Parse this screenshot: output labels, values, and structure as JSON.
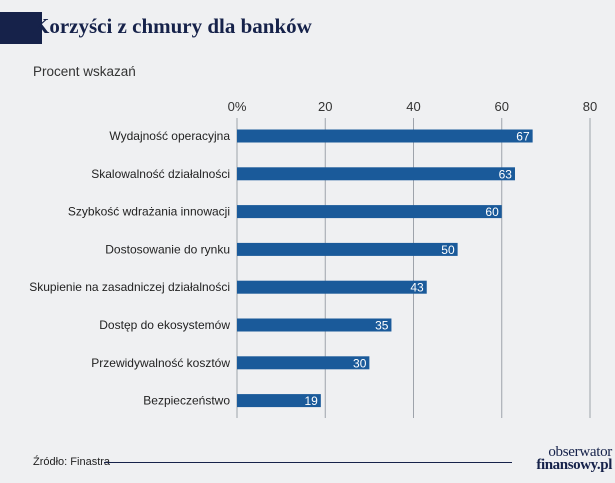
{
  "header": {
    "title": "Korzyści z chmury dla banków",
    "subtitle": "Procent wskazań"
  },
  "footer": {
    "source": "Źródło: Finastra",
    "logo_line1": "obserwator",
    "logo_line2": "finansowy.pl"
  },
  "colors": {
    "bar": "#1a5a9a",
    "accent": "#16224a",
    "background": "#eff0f2"
  },
  "chart_data": {
    "type": "bar",
    "orientation": "horizontal",
    "title": "Korzyści z chmury dla banków",
    "subtitle": "Procent wskazań",
    "categories": [
      "Wydajność operacyjna",
      "Skalowalność działalności",
      "Szybkość wdrażania innowacji",
      "Dostosowanie do rynku",
      "Skupienie na zasadniczej działalności",
      "Dostęp do ekosystemów",
      "Przewidywalność kosztów",
      "Bezpieczeństwo"
    ],
    "values": [
      67,
      63,
      60,
      50,
      43,
      35,
      30,
      19
    ],
    "xlim": [
      0,
      80
    ],
    "ticks": [
      "0%",
      "20",
      "40",
      "60",
      "80"
    ],
    "grid": true,
    "data_labels": true
  }
}
